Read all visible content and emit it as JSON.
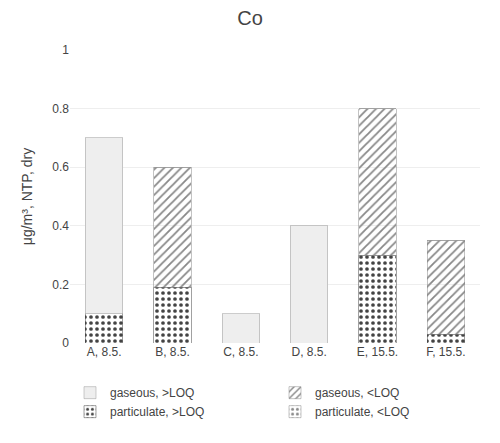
{
  "chart_data": {
    "type": "bar",
    "title": "Co",
    "ylabel": "μg/m³, NTP, dry",
    "categories": [
      "A, 8.5.",
      "B, 8.5.",
      "C, 8.5.",
      "D, 8.5.",
      "E, 15.5.",
      "F, 15.5."
    ],
    "series": [
      {
        "name": "particulate, <LOQ",
        "color": "#c8c8c8",
        "values": [
          0.0,
          0.0,
          0.0,
          0.0,
          0.0,
          0.0
        ]
      },
      {
        "name": "particulate, >LOQ",
        "color": "#777777",
        "values": [
          0.1,
          0.19,
          0.0,
          0.0,
          0.3,
          0.03
        ]
      },
      {
        "name": "gaseous, <LOQ",
        "color": "#c0c0c0",
        "values": [
          0.0,
          0.41,
          0.0,
          0.0,
          0.5,
          0.32
        ]
      },
      {
        "name": "gaseous, >LOQ",
        "color": "#eeeeee",
        "values": [
          0.6,
          0.0,
          0.1,
          0.4,
          0.0,
          0.0
        ]
      }
    ],
    "stacked": true,
    "ylim": [
      0,
      1.0
    ],
    "yticks": [
      0,
      0.2,
      0.4,
      0.6,
      0.8,
      1
    ],
    "grid": true,
    "legend": "bottom"
  }
}
